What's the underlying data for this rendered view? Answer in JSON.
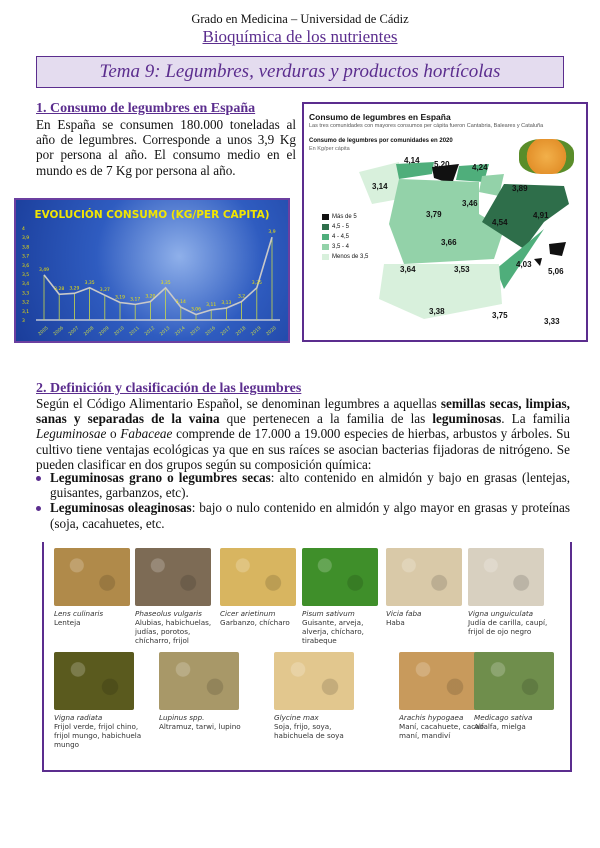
{
  "header": {
    "line1": "Grado en Medicina – Universidad de Cádiz",
    "line2": "Bioquímica de los nutrientes",
    "tema": "Tema 9: Legumbres, verduras y productos hortícolas"
  },
  "section1": {
    "heading": "1. Consumo de legumbres en España",
    "text": "En España se consumen 180.000 toneladas al año de legumbres. Corresponde a unos 3,9 Kg por persona al año. El consumo medio en el mundo es de 7 Kg por persona al año."
  },
  "chart_data": {
    "type": "line",
    "title": "EVOLUCIÓN CONSUMO (KG/PER CAPITA)",
    "categories": [
      "2005",
      "2006",
      "2007",
      "2008",
      "2009",
      "2010",
      "2011",
      "2012",
      "2013",
      "2014",
      "2015",
      "2016",
      "2017",
      "2018",
      "2019",
      "2020"
    ],
    "values": [
      3.49,
      3.28,
      3.29,
      3.35,
      3.27,
      3.19,
      3.17,
      3.2,
      3.35,
      3.14,
      3.06,
      3.11,
      3.13,
      3.2,
      3.35,
      3.9
    ],
    "value_labels": [
      "3,49",
      "3,28",
      "3,29",
      "3,35",
      "3,27",
      "3,19",
      "3,17",
      "3,20",
      "3,35",
      "3,14",
      "3,06",
      "3,11",
      "3,13",
      "3,2",
      "3,35",
      "3,9"
    ],
    "yticks": [
      "3",
      "3,1",
      "3,2",
      "3,3",
      "3,4",
      "3,5",
      "3,6",
      "3,7",
      "3,8",
      "3,9",
      "4"
    ],
    "ylim": [
      3,
      4
    ],
    "colors": {
      "line": "#c9c9c9",
      "labels": "#f2e600",
      "background": "#2f5cc0"
    }
  },
  "map": {
    "title": "Consumo de legumbres en España",
    "subtitle": "Las tres comunidades con mayores consumos per cápita fueron Cantabria, Baleares y Cataluña",
    "subtitle2": "Consumo de legumbres por comunidades en 2020",
    "unit": "En Kg/per cápita",
    "legend": [
      {
        "label": "Más de 5",
        "color": "#111111"
      },
      {
        "label": "4,5 - 5",
        "color": "#2e6e4a"
      },
      {
        "label": "4 - 4,5",
        "color": "#4fae7b"
      },
      {
        "label": "3,5 - 4",
        "color": "#93d2a9"
      },
      {
        "label": "Menos de 3,5",
        "color": "#d8f0dc"
      }
    ],
    "values": [
      "4,14",
      "5,20",
      "4,24",
      "3,14",
      "3,89",
      "3,46",
      "3,79",
      "4,54",
      "4,91",
      "3,66",
      "3,64",
      "3,53",
      "4,03",
      "5,06",
      "3,38",
      "3,75",
      "3,33"
    ]
  },
  "section2": {
    "heading": "2. Definición y clasificación de las legumbres",
    "p1": "Según el Código Alimentario Español, se denominan legumbres a aquellas ",
    "p1b": "semillas secas, limpias, sanas y separadas de la vaina",
    "p1c": " que pertenecen a la familia de las ",
    "p1d": "leguminosas",
    "p1e": ". La familia ",
    "p1f": "Leguminosae",
    "p1g": " o ",
    "p1h": "Fabaceae",
    "p1i": " comprende de 17.000 a 19.000 especies de hierbas, arbustos y árboles. Su cultivo tiene ventajas ecológicas ya que en sus raíces se asocian bacterias fijadoras de nitrógeno. Se pueden clasificar en dos grupos según su composición química:",
    "bullets": [
      {
        "bold": "Leguminosas grano o legumbres secas",
        "text": ": alto contenido en almidón y bajo en grasas (lentejas, guisantes, garbanzos, etc)."
      },
      {
        "bold": "Leguminosas oleaginosas",
        "text": ": bajo o nulo contenido en almidón y algo mayor en grasas y proteínas (soja, cacahuetes, etc."
      }
    ]
  },
  "legumes": [
    {
      "sci": "Lens culinaris",
      "common": "Lenteja",
      "color": "#b08a4a"
    },
    {
      "sci": "Phaseolus vulgaris",
      "common": "Alubias, habichuelas, judías, porotos, chícharro, frijol",
      "color": "#7d6b55"
    },
    {
      "sci": "Cicer arietinum",
      "common": "Garbanzo, chícharo",
      "color": "#d8b560"
    },
    {
      "sci": "Pisum sativum",
      "common": "Guisante, arveja, alverja, chícharo, tirabeque",
      "color": "#3f8f2a"
    },
    {
      "sci": "Vicia faba",
      "common": "Haba",
      "color": "#d9c9a8"
    },
    {
      "sci": "Vigna unguiculata",
      "common": "Judía de carilla, caupí, frijol de ojo negro",
      "color": "#d8d0c0"
    },
    {
      "sci": "Vigna radiata",
      "common": "Frijol verde, frijol chino, frijol mungo, habichuela mungo",
      "color": "#5a5a1e"
    },
    {
      "sci": "Lupinus spp.",
      "common": "Altramuz, tarwi, lupino",
      "color": "#a89868"
    },
    {
      "sci": "Glycine max",
      "common": "Soja, frijo, soya, habichuela de soya",
      "color": "#e2c78e"
    },
    {
      "sci": "Arachis hypogaea",
      "common": "Maní, cacahuete, cacao maní, mandiví",
      "color": "#c89a5c"
    },
    {
      "sci": "Medicago sativa",
      "common": "Alfalfa, mielga",
      "color": "#6f8e4c"
    }
  ]
}
